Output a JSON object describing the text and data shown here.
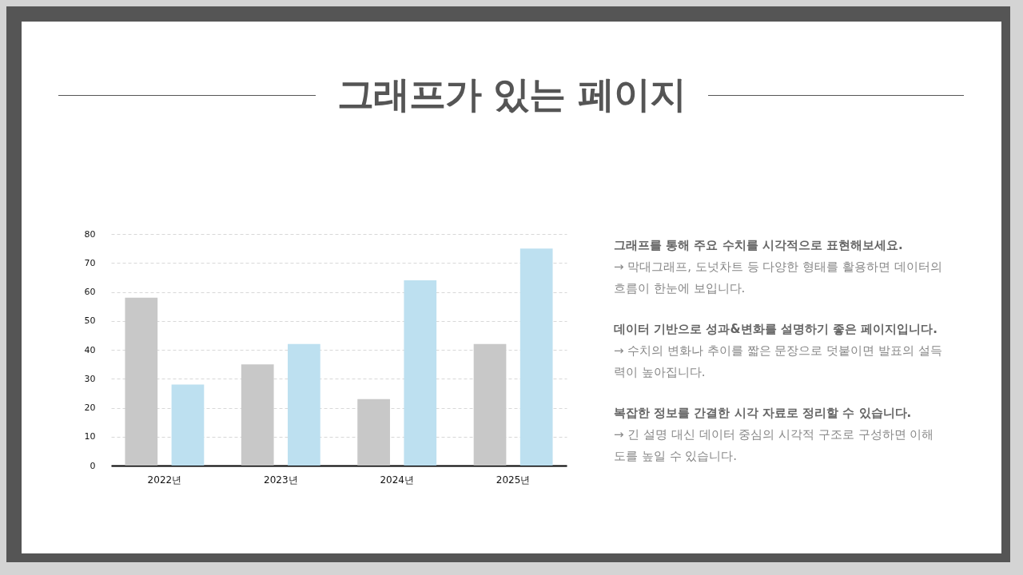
{
  "chart_data": {
    "type": "bar",
    "title": "그래프가 있는 페이지",
    "categories": [
      "2022년",
      "2023년",
      "2024년",
      "2025년"
    ],
    "series": [
      {
        "color": "#c8c8c8",
        "values": [
          58,
          35,
          23,
          42
        ]
      },
      {
        "color": "#bde0f0",
        "values": [
          28,
          42,
          64,
          75
        ]
      }
    ],
    "ylim": [
      0,
      80
    ],
    "yticks": [
      0,
      10,
      20,
      30,
      40,
      50,
      60,
      70,
      80
    ],
    "grid": "y",
    "legend": false,
    "annotations": [
      "그래프를 통해 주요 수치를 시각적으로 표현해보세요.",
      "→ 막대그래프, 도넛차트 등 다양한 형태를 활용하면 데이터의 흐름이 한눈에 보입니다.",
      "데이터 기반으로 성과&변화를 설명하기 좋은 페이지입니다.",
      "→ 수치의 변화나 추이를 짧은 문장으로 덧붙이면 발표의 설득력이 높아집니다.",
      "복잡한 정보를 간결한 시각 자료로 정리할 수 있습니다.",
      "→ 긴 설명 대신 데이터 중심의 시각적 구조로 구성하면 이해도를 높일 수 있습니다."
    ]
  }
}
